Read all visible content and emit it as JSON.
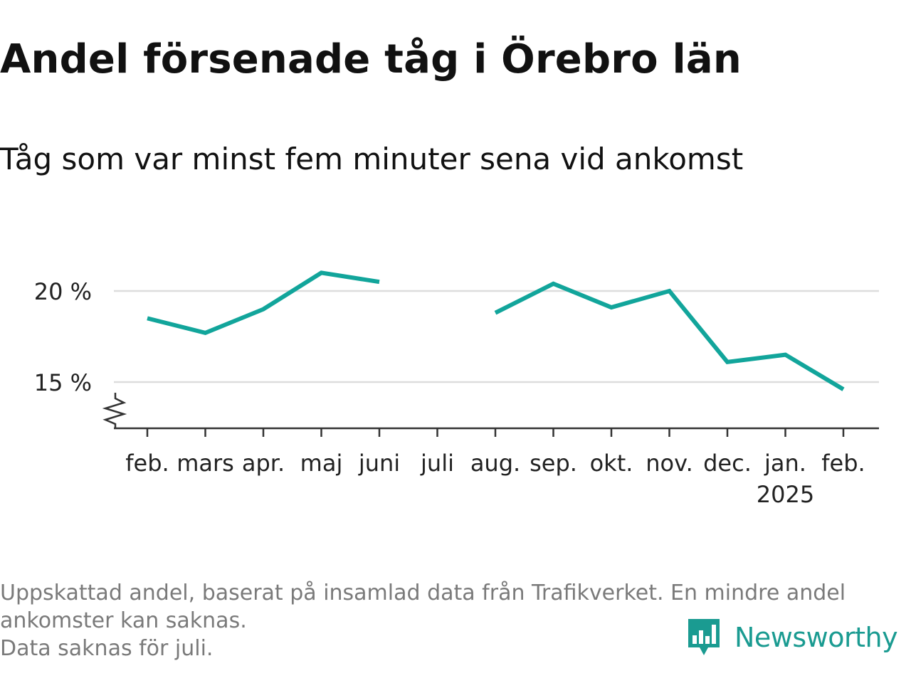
{
  "title": "Andel försenade tåg i Örebro län",
  "subtitle": "Tåg som var minst fem minuter sena vid ankomst",
  "colors": {
    "line": "#12a59b",
    "grid": "#dddddd",
    "axis": "#333333",
    "footer": "#7a7a7a",
    "brand": "#1a9b91"
  },
  "chart_data": {
    "type": "line",
    "categories": [
      "feb.",
      "mars",
      "apr.",
      "maj",
      "juni",
      "juli",
      "aug.",
      "sep.",
      "okt.",
      "nov.",
      "dec.",
      "jan.",
      "feb."
    ],
    "year_label": "2025",
    "year_label_under": "jan.",
    "series": [
      {
        "values": [
          18.5,
          17.7,
          19.0,
          21.0,
          20.5,
          null,
          18.8,
          20.4,
          19.1,
          20.0,
          16.1,
          16.5,
          14.6
        ]
      }
    ],
    "yticks": [
      {
        "value": 15,
        "label": "15 %"
      },
      {
        "value": 20,
        "label": "20 %"
      }
    ],
    "ylim": [
      12.5,
      22
    ],
    "axis_break": true,
    "grid": true,
    "legend": false
  },
  "footer": {
    "line1": "Uppskattad andel, baserat på insamlad data från Trafikverket. En mindre andel ankomster kan saknas.",
    "line2": "Data saknas för juli."
  },
  "brand": {
    "name": "Newsworthy",
    "icon": "newsworthy-logo-icon"
  }
}
